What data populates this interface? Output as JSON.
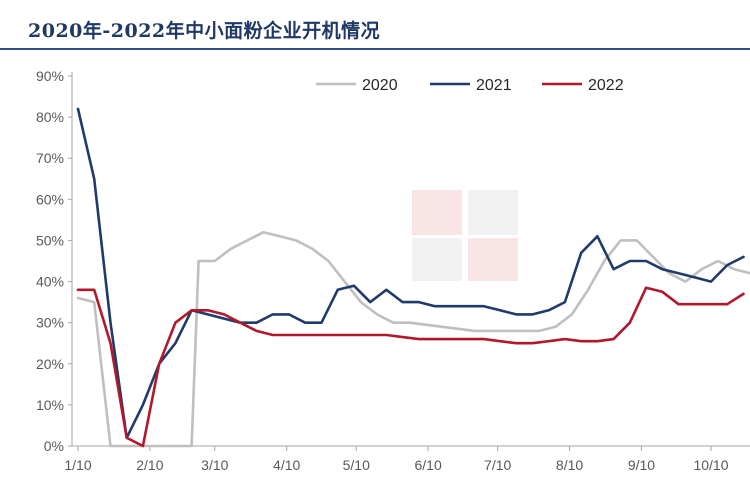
{
  "header": {
    "title": "2020年-2022年中小面粉企业开机情况"
  },
  "chart_data": {
    "type": "line",
    "title": "2020年-2022年中小面粉企业开机情况",
    "xlabel": "",
    "ylabel": "",
    "x_tick_labels": [
      "1/10",
      "2/10",
      "3/10",
      "4/10",
      "5/10",
      "6/10",
      "7/10",
      "8/10",
      "9/10",
      "10/10"
    ],
    "y_tick_labels": [
      "0%",
      "10%",
      "20%",
      "30%",
      "40%",
      "50%",
      "60%",
      "70%",
      "80%",
      "90%"
    ],
    "ylim": [
      0,
      90
    ],
    "grid": false,
    "legend": "top-right",
    "series": [
      {
        "name": "2020",
        "color": "#bfbfbf",
        "points": [
          [
            "1/10",
            36
          ],
          [
            "1/17",
            35
          ],
          [
            "1/24",
            0
          ],
          [
            "1/31",
            0
          ],
          [
            "2/7",
            0
          ],
          [
            "2/14",
            0
          ],
          [
            "2/21",
            0
          ],
          [
            "2/28",
            0
          ],
          [
            "3/3",
            45
          ],
          [
            "3/10",
            45
          ],
          [
            "3/17",
            48
          ],
          [
            "3/24",
            50
          ],
          [
            "3/31",
            52
          ],
          [
            "4/7",
            51
          ],
          [
            "4/14",
            50
          ],
          [
            "4/21",
            48
          ],
          [
            "4/28",
            45
          ],
          [
            "5/5",
            40
          ],
          [
            "5/12",
            35
          ],
          [
            "5/19",
            32
          ],
          [
            "5/26",
            30
          ],
          [
            "6/2",
            30
          ],
          [
            "6/9",
            29.5
          ],
          [
            "6/16",
            29
          ],
          [
            "6/23",
            28.5
          ],
          [
            "6/30",
            28
          ],
          [
            "7/7",
            28
          ],
          [
            "7/14",
            28
          ],
          [
            "7/21",
            28
          ],
          [
            "7/28",
            28
          ],
          [
            "8/4",
            29
          ],
          [
            "8/11",
            32
          ],
          [
            "8/18",
            38
          ],
          [
            "8/25",
            45
          ],
          [
            "9/1",
            50
          ],
          [
            "9/8",
            50
          ],
          [
            "9/15",
            46
          ],
          [
            "9/22",
            42
          ],
          [
            "9/29",
            40
          ],
          [
            "10/6",
            43
          ],
          [
            "10/13",
            45
          ],
          [
            "10/20",
            43
          ],
          [
            "10/27",
            42
          ]
        ]
      },
      {
        "name": "2021",
        "color": "#1f3a6b",
        "points": [
          [
            "1/10",
            82
          ],
          [
            "1/17",
            65
          ],
          [
            "1/24",
            30
          ],
          [
            "1/31",
            2
          ],
          [
            "2/7",
            10
          ],
          [
            "2/14",
            20
          ],
          [
            "2/21",
            25
          ],
          [
            "2/28",
            33
          ],
          [
            "3/7",
            32
          ],
          [
            "3/14",
            31
          ],
          [
            "3/21",
            30
          ],
          [
            "3/28",
            30
          ],
          [
            "4/4",
            32
          ],
          [
            "4/11",
            32
          ],
          [
            "4/18",
            30
          ],
          [
            "4/25",
            30
          ],
          [
            "5/2",
            38
          ],
          [
            "5/9",
            39
          ],
          [
            "5/16",
            35
          ],
          [
            "5/23",
            38
          ],
          [
            "5/30",
            35
          ],
          [
            "6/6",
            35
          ],
          [
            "6/13",
            34
          ],
          [
            "6/20",
            34
          ],
          [
            "6/27",
            34
          ],
          [
            "7/4",
            34
          ],
          [
            "7/11",
            33
          ],
          [
            "7/18",
            32
          ],
          [
            "7/25",
            32
          ],
          [
            "8/1",
            33
          ],
          [
            "8/8",
            35
          ],
          [
            "8/15",
            47
          ],
          [
            "8/22",
            51
          ],
          [
            "8/29",
            43
          ],
          [
            "9/5",
            45
          ],
          [
            "9/12",
            45
          ],
          [
            "9/19",
            43
          ],
          [
            "9/26",
            42
          ],
          [
            "10/3",
            41
          ],
          [
            "10/10",
            40
          ],
          [
            "10/17",
            44
          ],
          [
            "10/24",
            46
          ]
        ]
      },
      {
        "name": "2022",
        "color": "#b2182b",
        "points": [
          [
            "1/10",
            38
          ],
          [
            "1/17",
            38
          ],
          [
            "1/24",
            25
          ],
          [
            "1/31",
            2
          ],
          [
            "2/7",
            0
          ],
          [
            "2/14",
            20
          ],
          [
            "2/21",
            30
          ],
          [
            "2/28",
            33
          ],
          [
            "3/7",
            33
          ],
          [
            "3/14",
            32
          ],
          [
            "3/21",
            30
          ],
          [
            "3/28",
            28
          ],
          [
            "4/4",
            27
          ],
          [
            "4/11",
            27
          ],
          [
            "4/18",
            27
          ],
          [
            "4/25",
            27
          ],
          [
            "5/2",
            27
          ],
          [
            "5/9",
            27
          ],
          [
            "5/16",
            27
          ],
          [
            "5/23",
            27
          ],
          [
            "5/30",
            26.5
          ],
          [
            "6/6",
            26
          ],
          [
            "6/13",
            26
          ],
          [
            "6/20",
            26
          ],
          [
            "6/27",
            26
          ],
          [
            "7/4",
            26
          ],
          [
            "7/11",
            25.5
          ],
          [
            "7/18",
            25
          ],
          [
            "7/25",
            25
          ],
          [
            "8/1",
            25.5
          ],
          [
            "8/8",
            26
          ],
          [
            "8/15",
            25.5
          ],
          [
            "8/22",
            25.5
          ],
          [
            "8/29",
            26
          ],
          [
            "9/5",
            30
          ],
          [
            "9/12",
            38.5
          ],
          [
            "9/19",
            37.5
          ],
          [
            "9/26",
            34.5
          ],
          [
            "10/3",
            34.5
          ],
          [
            "10/10",
            34.5
          ],
          [
            "10/17",
            34.5
          ],
          [
            "10/24",
            37
          ]
        ]
      }
    ]
  }
}
